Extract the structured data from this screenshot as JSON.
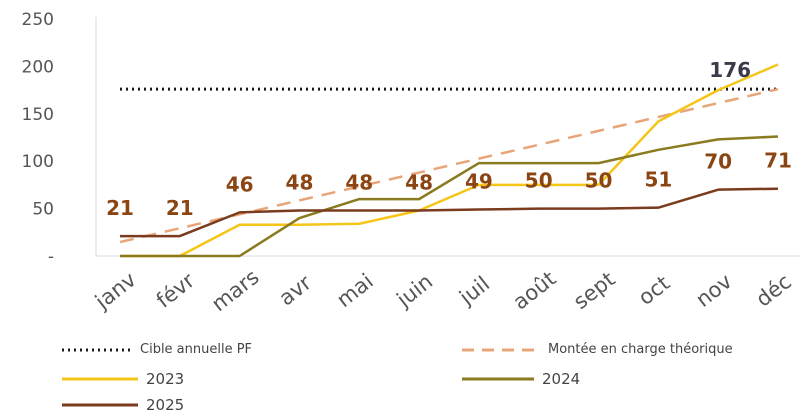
{
  "chart_data": {
    "type": "line",
    "categories": [
      "janv",
      "févr",
      "mars",
      "avr",
      "mai",
      "juin",
      "juil",
      "août",
      "sept",
      "oct",
      "nov",
      "déc"
    ],
    "y_ticks": [
      "250",
      "200",
      "150",
      "100",
      "50",
      "-"
    ],
    "ylim": [
      0,
      250
    ],
    "grid": false,
    "legend_position": "bottom",
    "target": {
      "name": "Cible annuelle PF",
      "value": 176,
      "style": "dotted",
      "color": "#1a1a1a"
    },
    "series": [
      {
        "name": "Montée en charge théorique",
        "style": "dashed",
        "color": "#e8a57a",
        "values": [
          14.7,
          29.3,
          44,
          58.7,
          73.3,
          88,
          102.7,
          117.3,
          132,
          146.7,
          161.3,
          176
        ]
      },
      {
        "name": "2023",
        "style": "solid",
        "color": "#f5c518",
        "values": [
          0,
          0,
          33,
          33,
          34,
          48,
          75,
          75,
          75,
          142,
          175,
          202
        ]
      },
      {
        "name": "2024",
        "style": "solid",
        "color": "#8a7a20",
        "values": [
          0,
          0,
          0,
          40,
          60,
          60,
          98,
          98,
          98,
          112,
          123,
          126
        ]
      },
      {
        "name": "2025",
        "style": "solid",
        "color": "#7a3b1e",
        "values": [
          21,
          21,
          46,
          48,
          48,
          48,
          49,
          50,
          50,
          51,
          70,
          71
        ]
      }
    ],
    "data_labels": [
      "21",
      "21",
      "46",
      "48",
      "48",
      "48",
      "49",
      "50",
      "50",
      "51",
      "70",
      "71"
    ],
    "annotation_dec": "176",
    "label_color": "#8b4513"
  },
  "legend": {
    "items": [
      {
        "key": "target",
        "label": "Cible annuelle PF"
      },
      {
        "key": "theory",
        "label": "Montée en charge théorique"
      },
      {
        "key": "y2023",
        "label": "2023"
      },
      {
        "key": "y2024",
        "label": "2024"
      },
      {
        "key": "y2025",
        "label": "2025"
      }
    ]
  }
}
